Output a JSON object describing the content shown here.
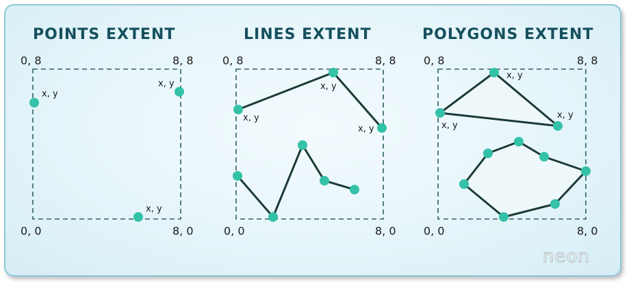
{
  "panels": [
    {
      "title": "POINTS EXTENT",
      "corner_tl": "0, 8",
      "corner_tr": "8, 8",
      "corner_bl": "0, 0",
      "corner_br": "8, 0",
      "point_label": "x, y"
    },
    {
      "title": "LINES EXTENT",
      "corner_tl": "0, 8",
      "corner_tr": "8, 8",
      "corner_bl": "0, 0",
      "corner_br": "8, 0",
      "point_label": "x, y"
    },
    {
      "title": "POLYGONS EXTENT",
      "corner_tl": "0, 8",
      "corner_tr": "8, 8",
      "corner_bl": "0, 0",
      "corner_br": "8, 0",
      "point_label": "x, y"
    }
  ],
  "logo": {
    "text": "neon"
  },
  "colors": {
    "point": "#33c1a8",
    "line": "#1c3a35",
    "box": "#2e5e66",
    "title": "#16505e",
    "polygon_fill": "#eef8fb"
  }
}
